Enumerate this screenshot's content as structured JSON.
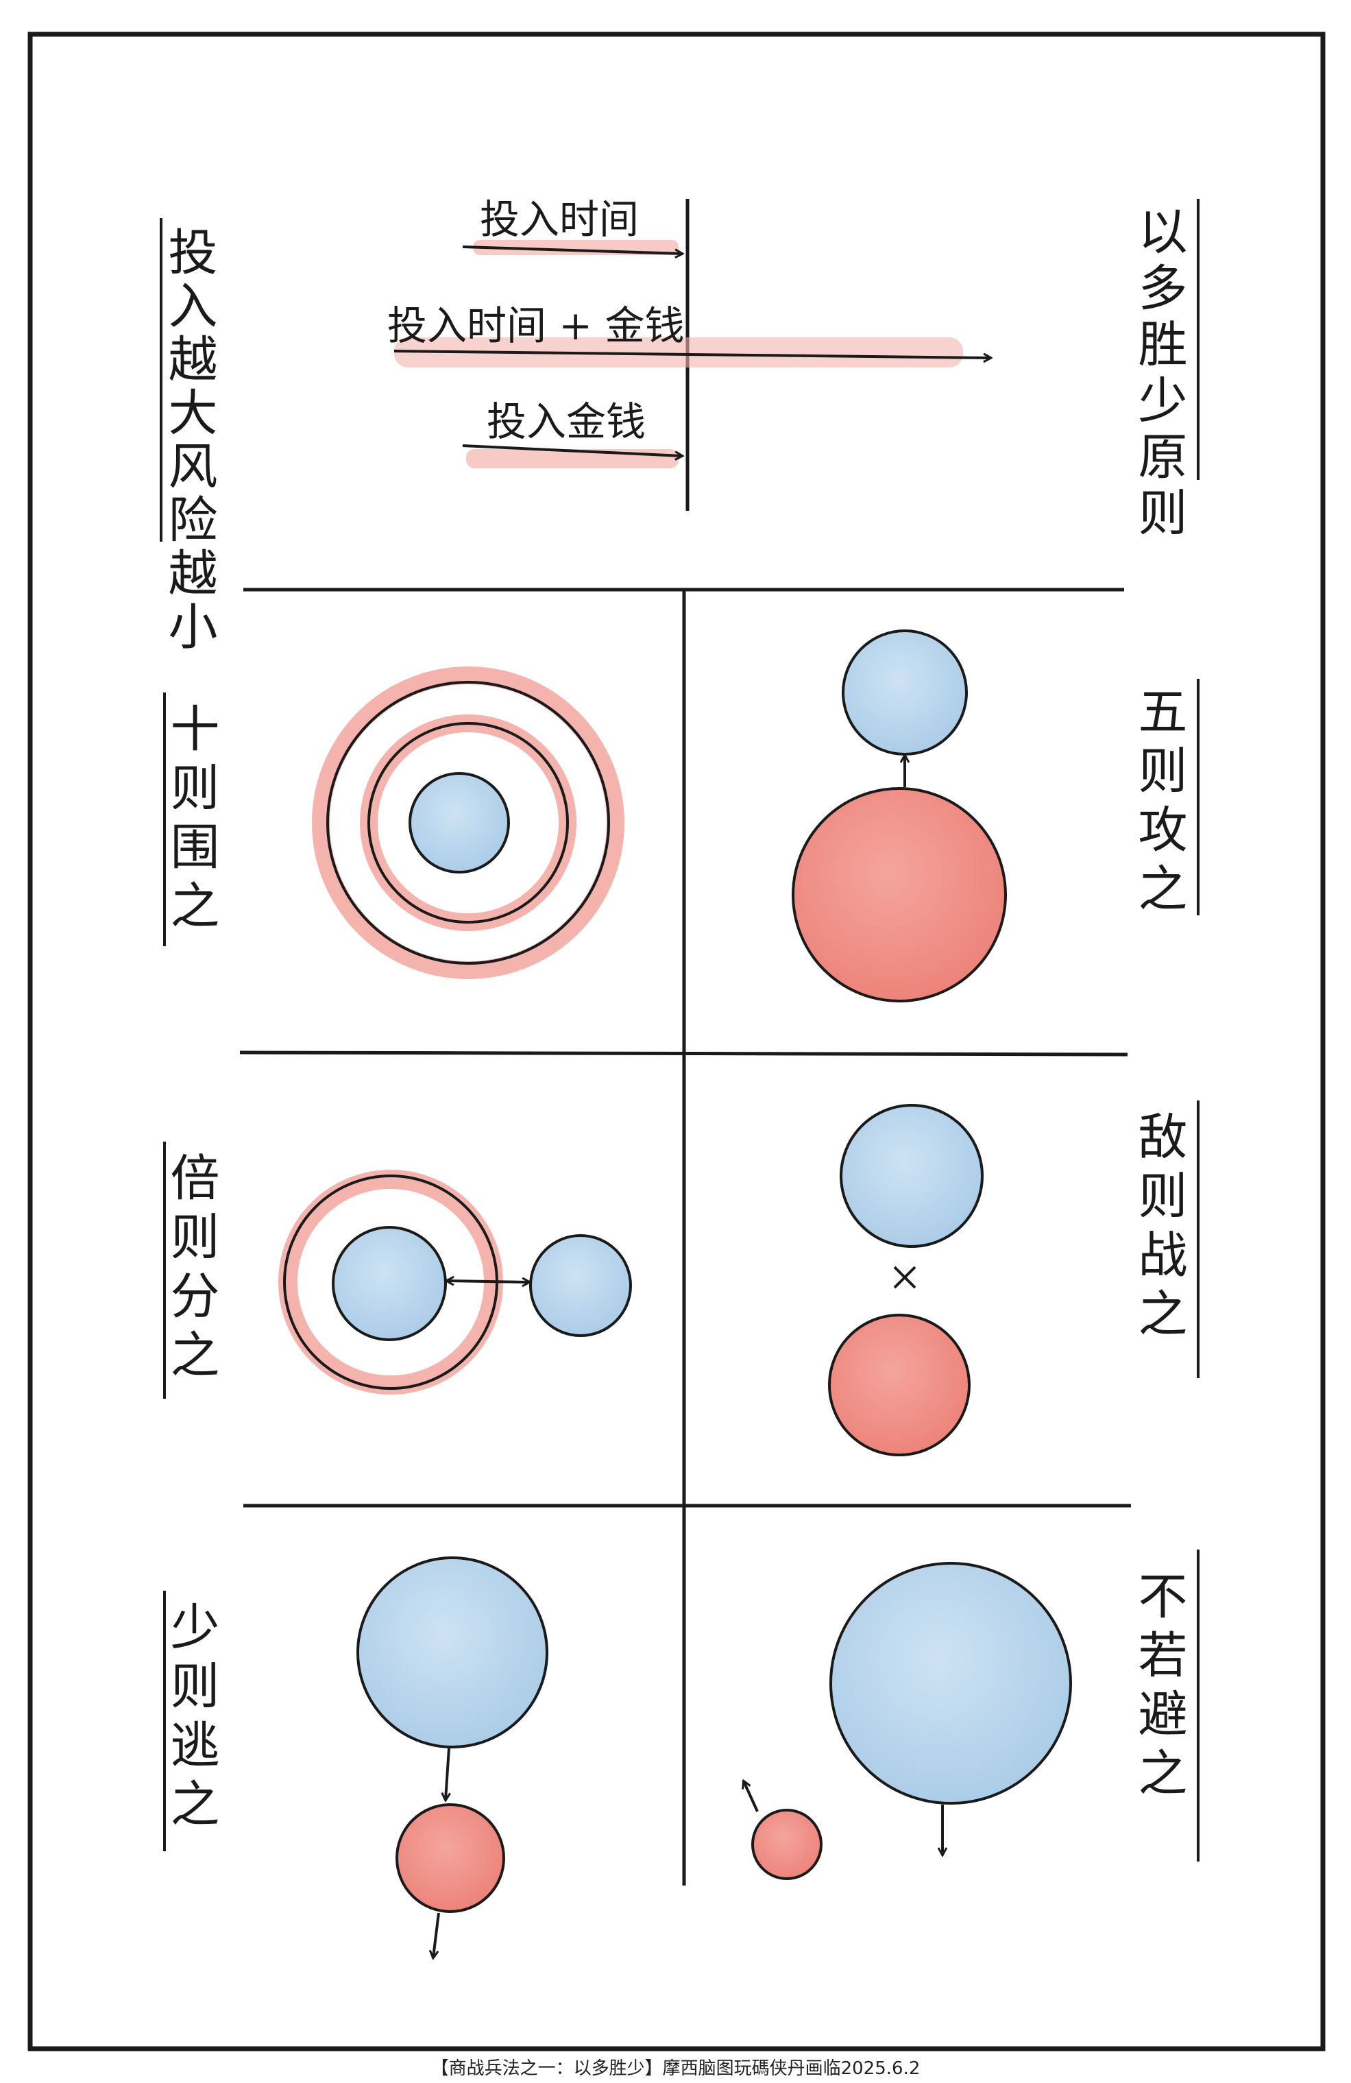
{
  "header": {
    "left_vertical": "投入越大风险越小",
    "right_vertical": "以多胜少原则",
    "arrows": [
      {
        "label": "投入时间"
      },
      {
        "label": "投入时间 + 金钱"
      },
      {
        "label": "投入金钱"
      }
    ]
  },
  "cells": [
    {
      "label": "十则围之"
    },
    {
      "label": "五则攻之"
    },
    {
      "label": "倍则分之"
    },
    {
      "label": "敌则战之"
    },
    {
      "label": "少则逃之"
    },
    {
      "label": "不若避之"
    }
  ],
  "caption": "【商战兵法之一：以多胜少】摩西脑图玩碼侠丹画临2025.6.2",
  "colors": {
    "red": "#ef8e86",
    "red_glow": "#f4b4ad",
    "blue": "#b9d5ec",
    "ink": "#1a1a1a"
  }
}
